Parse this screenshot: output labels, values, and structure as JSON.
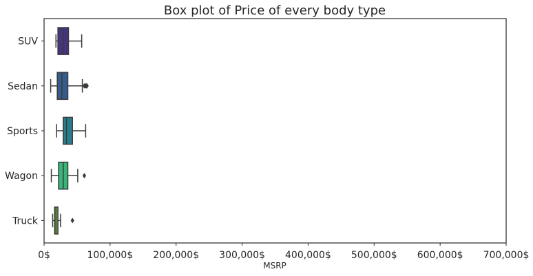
{
  "chart_data": {
    "type": "boxplot",
    "orientation": "horizontal",
    "title": "Box plot of Price of every body type",
    "xlabel": "MSRP",
    "ylabel": "",
    "xlim": [
      0,
      700000
    ],
    "x_ticks": [
      0,
      100000,
      200000,
      300000,
      400000,
      500000,
      600000,
      700000
    ],
    "x_tick_labels": [
      "0$",
      "100,000$",
      "200,000$",
      "300,000$",
      "400,000$",
      "500,000$",
      "600,000$",
      "700,000$"
    ],
    "grid": false,
    "categories": [
      "SUV",
      "Sedan",
      "Sports",
      "Wagon",
      "Truck"
    ],
    "boxes": [
      {
        "category": "SUV",
        "whisker_low": 18000,
        "q1": 21000,
        "median": 29000,
        "q3": 37000,
        "whisker_high": 57000,
        "outliers": [],
        "color": "#46337e"
      },
      {
        "category": "Sedan",
        "whisker_low": 10000,
        "q1": 20000,
        "median": 27000,
        "q3": 36000,
        "whisker_high": 58000,
        "outliers": [
          61000,
          63000,
          64000,
          65000
        ],
        "color": "#365c8d"
      },
      {
        "category": "Sports",
        "whisker_low": 19000,
        "q1": 29000,
        "median": 34000,
        "q3": 43000,
        "whisker_high": 63000,
        "outliers": [],
        "color": "#277f8e"
      },
      {
        "category": "Wagon",
        "whisker_low": 11000,
        "q1": 22000,
        "median": 29000,
        "q3": 36000,
        "whisker_high": 51000,
        "outliers": [
          61000
        ],
        "color": "#36b677"
      },
      {
        "category": "Truck",
        "whisker_low": 13000,
        "q1": 16000,
        "median": 18000,
        "q3": 21000,
        "whisker_high": 25000,
        "outliers": [
          43000
        ],
        "color": "#6db14a"
      }
    ]
  }
}
